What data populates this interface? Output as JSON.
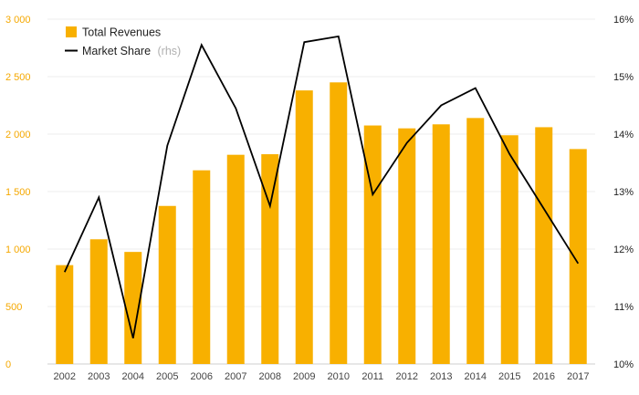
{
  "chart_data": {
    "type": "bar",
    "categories": [
      "2002",
      "2003",
      "2004",
      "2005",
      "2006",
      "2007",
      "2008",
      "2009",
      "2010",
      "2011",
      "2012",
      "2013",
      "2014",
      "2015",
      "2016",
      "2017"
    ],
    "series": [
      {
        "name": "Total Revenues",
        "type": "bar",
        "axis": "left",
        "color": "#f8b000",
        "values": [
          860,
          1085,
          975,
          1375,
          1685,
          1820,
          1825,
          2380,
          2450,
          2075,
          2050,
          2085,
          2140,
          1990,
          2060,
          1870
        ]
      },
      {
        "name": "Market Share",
        "type": "line",
        "axis": "right",
        "color": "#000000",
        "values": [
          11.6,
          12.9,
          10.45,
          13.8,
          15.55,
          14.45,
          12.75,
          15.6,
          15.7,
          12.95,
          13.85,
          14.5,
          14.8,
          13.65,
          12.7,
          11.75
        ]
      }
    ],
    "left_axis": {
      "min": 0,
      "max": 3000,
      "ticks": [
        0,
        500,
        1000,
        1500,
        2000,
        2500,
        3000
      ],
      "tick_labels": [
        "0",
        "500",
        "1 000",
        "1 500",
        "2 000",
        "2 500",
        "3 000"
      ],
      "color": "#f5a800"
    },
    "right_axis": {
      "min": 10,
      "max": 16,
      "ticks": [
        10,
        11,
        12,
        13,
        14,
        15,
        16
      ],
      "tick_labels": [
        "10%",
        "11%",
        "12%",
        "13%",
        "14%",
        "15%",
        "16%"
      ],
      "color": "#222222"
    },
    "legend": {
      "position": "top-left",
      "items": [
        {
          "label": "Total Revenues",
          "marker": "square",
          "color": "#f8b000"
        },
        {
          "label": "Market Share",
          "suffix": "(rhs)",
          "marker": "line",
          "color": "#000000"
        }
      ]
    },
    "grid": true
  }
}
